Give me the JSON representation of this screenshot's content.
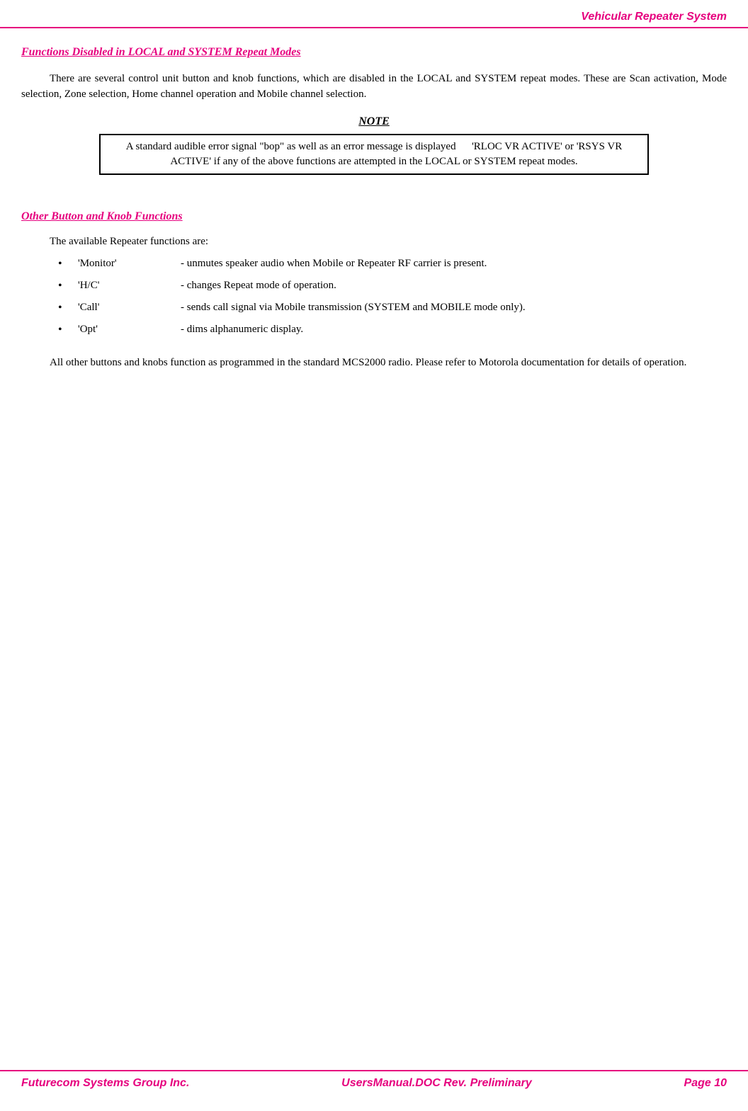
{
  "header": {
    "title": "Vehicular Repeater System"
  },
  "section1": {
    "heading": "Functions Disabled in LOCAL and SYSTEM Repeat Modes",
    "paragraph": "There are several control unit button and knob functions, which are disabled in the LOCAL and SYSTEM repeat modes.  These are Scan activation, Mode selection, Zone selection, Home channel operation and Mobile channel selection."
  },
  "note": {
    "heading": "NOTE",
    "text": "A standard audible error signal \"bop\" as well as an error message is displayed   'RLOC VR ACTIVE' or 'RSYS VR ACTIVE' if any of the above functions are attempted in the LOCAL or SYSTEM repeat modes."
  },
  "section2": {
    "heading": "Other Button and Knob Functions",
    "intro": "The available Repeater functions are:",
    "items": [
      {
        "name": "'Monitor'",
        "desc": "- unmutes speaker audio when Mobile or Repeater RF carrier is present."
      },
      {
        "name": "'H/C'",
        "desc": "- changes Repeat mode of operation."
      },
      {
        "name": "'Call'",
        "desc": "- sends call signal via Mobile transmission (SYSTEM and MOBILE mode only)."
      },
      {
        "name": "'Opt'",
        "desc": "- dims alphanumeric display."
      }
    ],
    "closing": "All other buttons and knobs function as programmed in the standard MCS2000 radio. Please refer to Motorola documentation for details of operation."
  },
  "footer": {
    "left": "Futurecom Systems Group Inc.",
    "center": "UsersManual.DOC Rev. Preliminary",
    "right": "Page 10"
  },
  "colors": {
    "accent": "#e6007e",
    "text": "#000000",
    "border": "#000000"
  }
}
